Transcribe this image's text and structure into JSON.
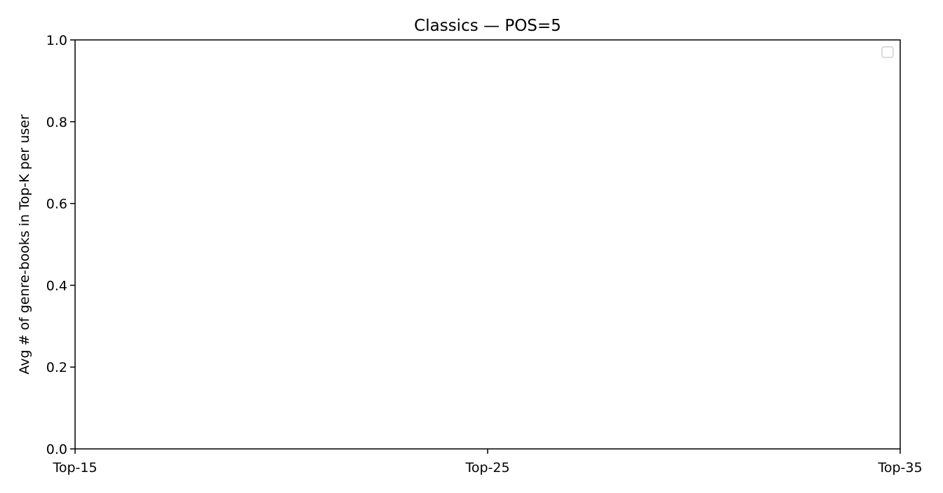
{
  "chart_data": {
    "type": "line",
    "title": "Classics — POS=5",
    "xlabel": "",
    "ylabel": "Avg # of genre-books in Top-K per user",
    "categories": [
      "Top-15",
      "Top-25",
      "Top-35"
    ],
    "ylim": [
      0.0,
      1.0
    ],
    "yticks": [
      0.0,
      0.2,
      0.4,
      0.6,
      0.8,
      1.0
    ],
    "ytick_labels": [
      "0.0",
      "0.2",
      "0.4",
      "0.6",
      "0.8",
      "1.0"
    ],
    "series": [],
    "grid": false,
    "legend": {
      "position": "upper right",
      "entries": []
    }
  }
}
